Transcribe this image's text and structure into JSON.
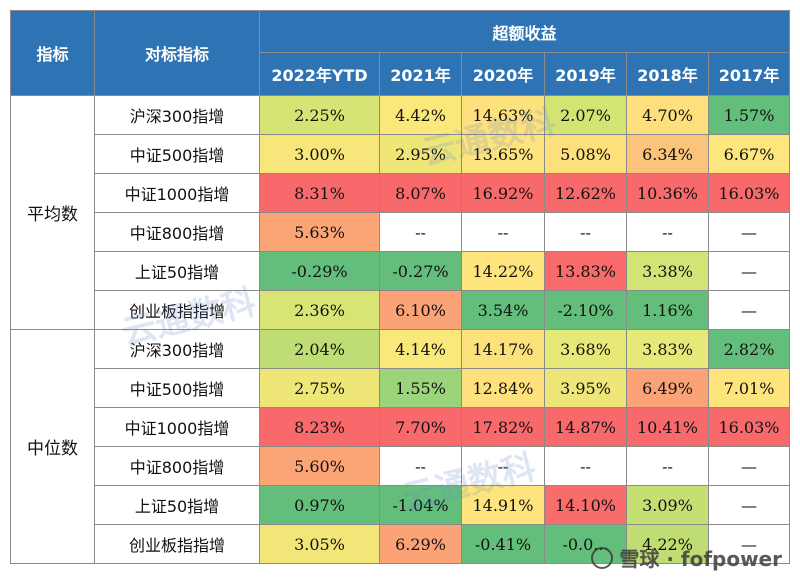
{
  "header": {
    "col_indicator": "指标",
    "col_benchmark": "对标指标",
    "col_excess": "超额收益"
  },
  "years": [
    "2022年YTD",
    "2021年",
    "2020年",
    "2019年",
    "2018年",
    "2017年"
  ],
  "groups": [
    {
      "label": "平均数",
      "rows": [
        {
          "name": "沪深300指增",
          "cells": [
            "2.25%",
            "4.42%",
            "14.63%",
            "2.07%",
            "4.70%",
            "1.57%"
          ],
          "colors": [
            "#d5e474",
            "#fbe87a",
            "#fde17c",
            "#d3e472",
            "#fde07c",
            "#63be7b"
          ]
        },
        {
          "name": "中证500指增",
          "cells": [
            "3.00%",
            "2.95%",
            "13.65%",
            "5.08%",
            "6.34%",
            "6.67%"
          ],
          "colors": [
            "#f7e77a",
            "#f0e678",
            "#fde47d",
            "#fde07c",
            "#fcc37a",
            "#fde67d"
          ]
        },
        {
          "name": "中证1000指增",
          "cells": [
            "8.31%",
            "8.07%",
            "16.92%",
            "12.62%",
            "10.36%",
            "16.03%"
          ],
          "colors": [
            "#f8696b",
            "#f8696b",
            "#f8696b",
            "#f8696b",
            "#f8696b",
            "#f8696b"
          ]
        },
        {
          "name": "中证800指增",
          "cells": [
            "5.63%",
            "--",
            "--",
            "--",
            "--",
            "—"
          ],
          "colors": [
            "#fba476",
            "#ffffff",
            "#ffffff",
            "#ffffff",
            "#ffffff",
            "#ffffff"
          ]
        },
        {
          "name": "上证50指增",
          "cells": [
            "-0.29%",
            "-0.27%",
            "14.22%",
            "13.83%",
            "3.38%",
            "—"
          ],
          "colors": [
            "#63be7b",
            "#63be7b",
            "#fde47d",
            "#f96b6b",
            "#d2e475",
            "#ffffff"
          ]
        },
        {
          "name": "创业板指指增",
          "cells": [
            "2.36%",
            "6.10%",
            "3.54%",
            "-2.10%",
            "1.16%",
            "—"
          ],
          "colors": [
            "#d8e575",
            "#fba276",
            "#63be7b",
            "#63be7b",
            "#63be7b",
            "#ffffff"
          ]
        }
      ]
    },
    {
      "label": "中位数",
      "rows": [
        {
          "name": "沪深300指增",
          "cells": [
            "2.04%",
            "4.14%",
            "14.17%",
            "3.68%",
            "3.83%",
            "2.82%"
          ],
          "colors": [
            "#bfdd74",
            "#fbe87a",
            "#fde17c",
            "#e6e978",
            "#e6e978",
            "#63be7b"
          ]
        },
        {
          "name": "中证500指增",
          "cells": [
            "2.75%",
            "1.55%",
            "12.84%",
            "3.95%",
            "6.49%",
            "7.01%"
          ],
          "colors": [
            "#eee677",
            "#9bd47a",
            "#fee17d",
            "#eee678",
            "#fba276",
            "#fde47d"
          ]
        },
        {
          "name": "中证1000指增",
          "cells": [
            "8.23%",
            "7.70%",
            "17.82%",
            "14.87%",
            "10.41%",
            "16.03%"
          ],
          "colors": [
            "#f8696b",
            "#f8696b",
            "#f8696b",
            "#f8696b",
            "#f8696b",
            "#f8696b"
          ]
        },
        {
          "name": "中证800指增",
          "cells": [
            "5.60%",
            "--",
            "--",
            "--",
            "--",
            "—"
          ],
          "colors": [
            "#fba476",
            "#ffffff",
            "#ffffff",
            "#ffffff",
            "#ffffff",
            "#ffffff"
          ]
        },
        {
          "name": "上证50指增",
          "cells": [
            "0.97%",
            "-1.04%",
            "14.91%",
            "14.10%",
            "3.09%",
            "—"
          ],
          "colors": [
            "#63be7b",
            "#63be7b",
            "#fde47d",
            "#f86c6b",
            "#c5df73",
            "#ffffff"
          ]
        },
        {
          "name": "创业板指指增",
          "cells": [
            "3.05%",
            "6.29%",
            "-0.41%",
            "-0.0...",
            "4.22%",
            "—"
          ],
          "colors": [
            "#f3e679",
            "#fba276",
            "#63be7b",
            "#63be7b",
            "#c0dd74",
            "#ffffff"
          ]
        }
      ]
    }
  ],
  "watermarks": {
    "center": "云通数科",
    "corner": "雪球 · fofpower"
  }
}
